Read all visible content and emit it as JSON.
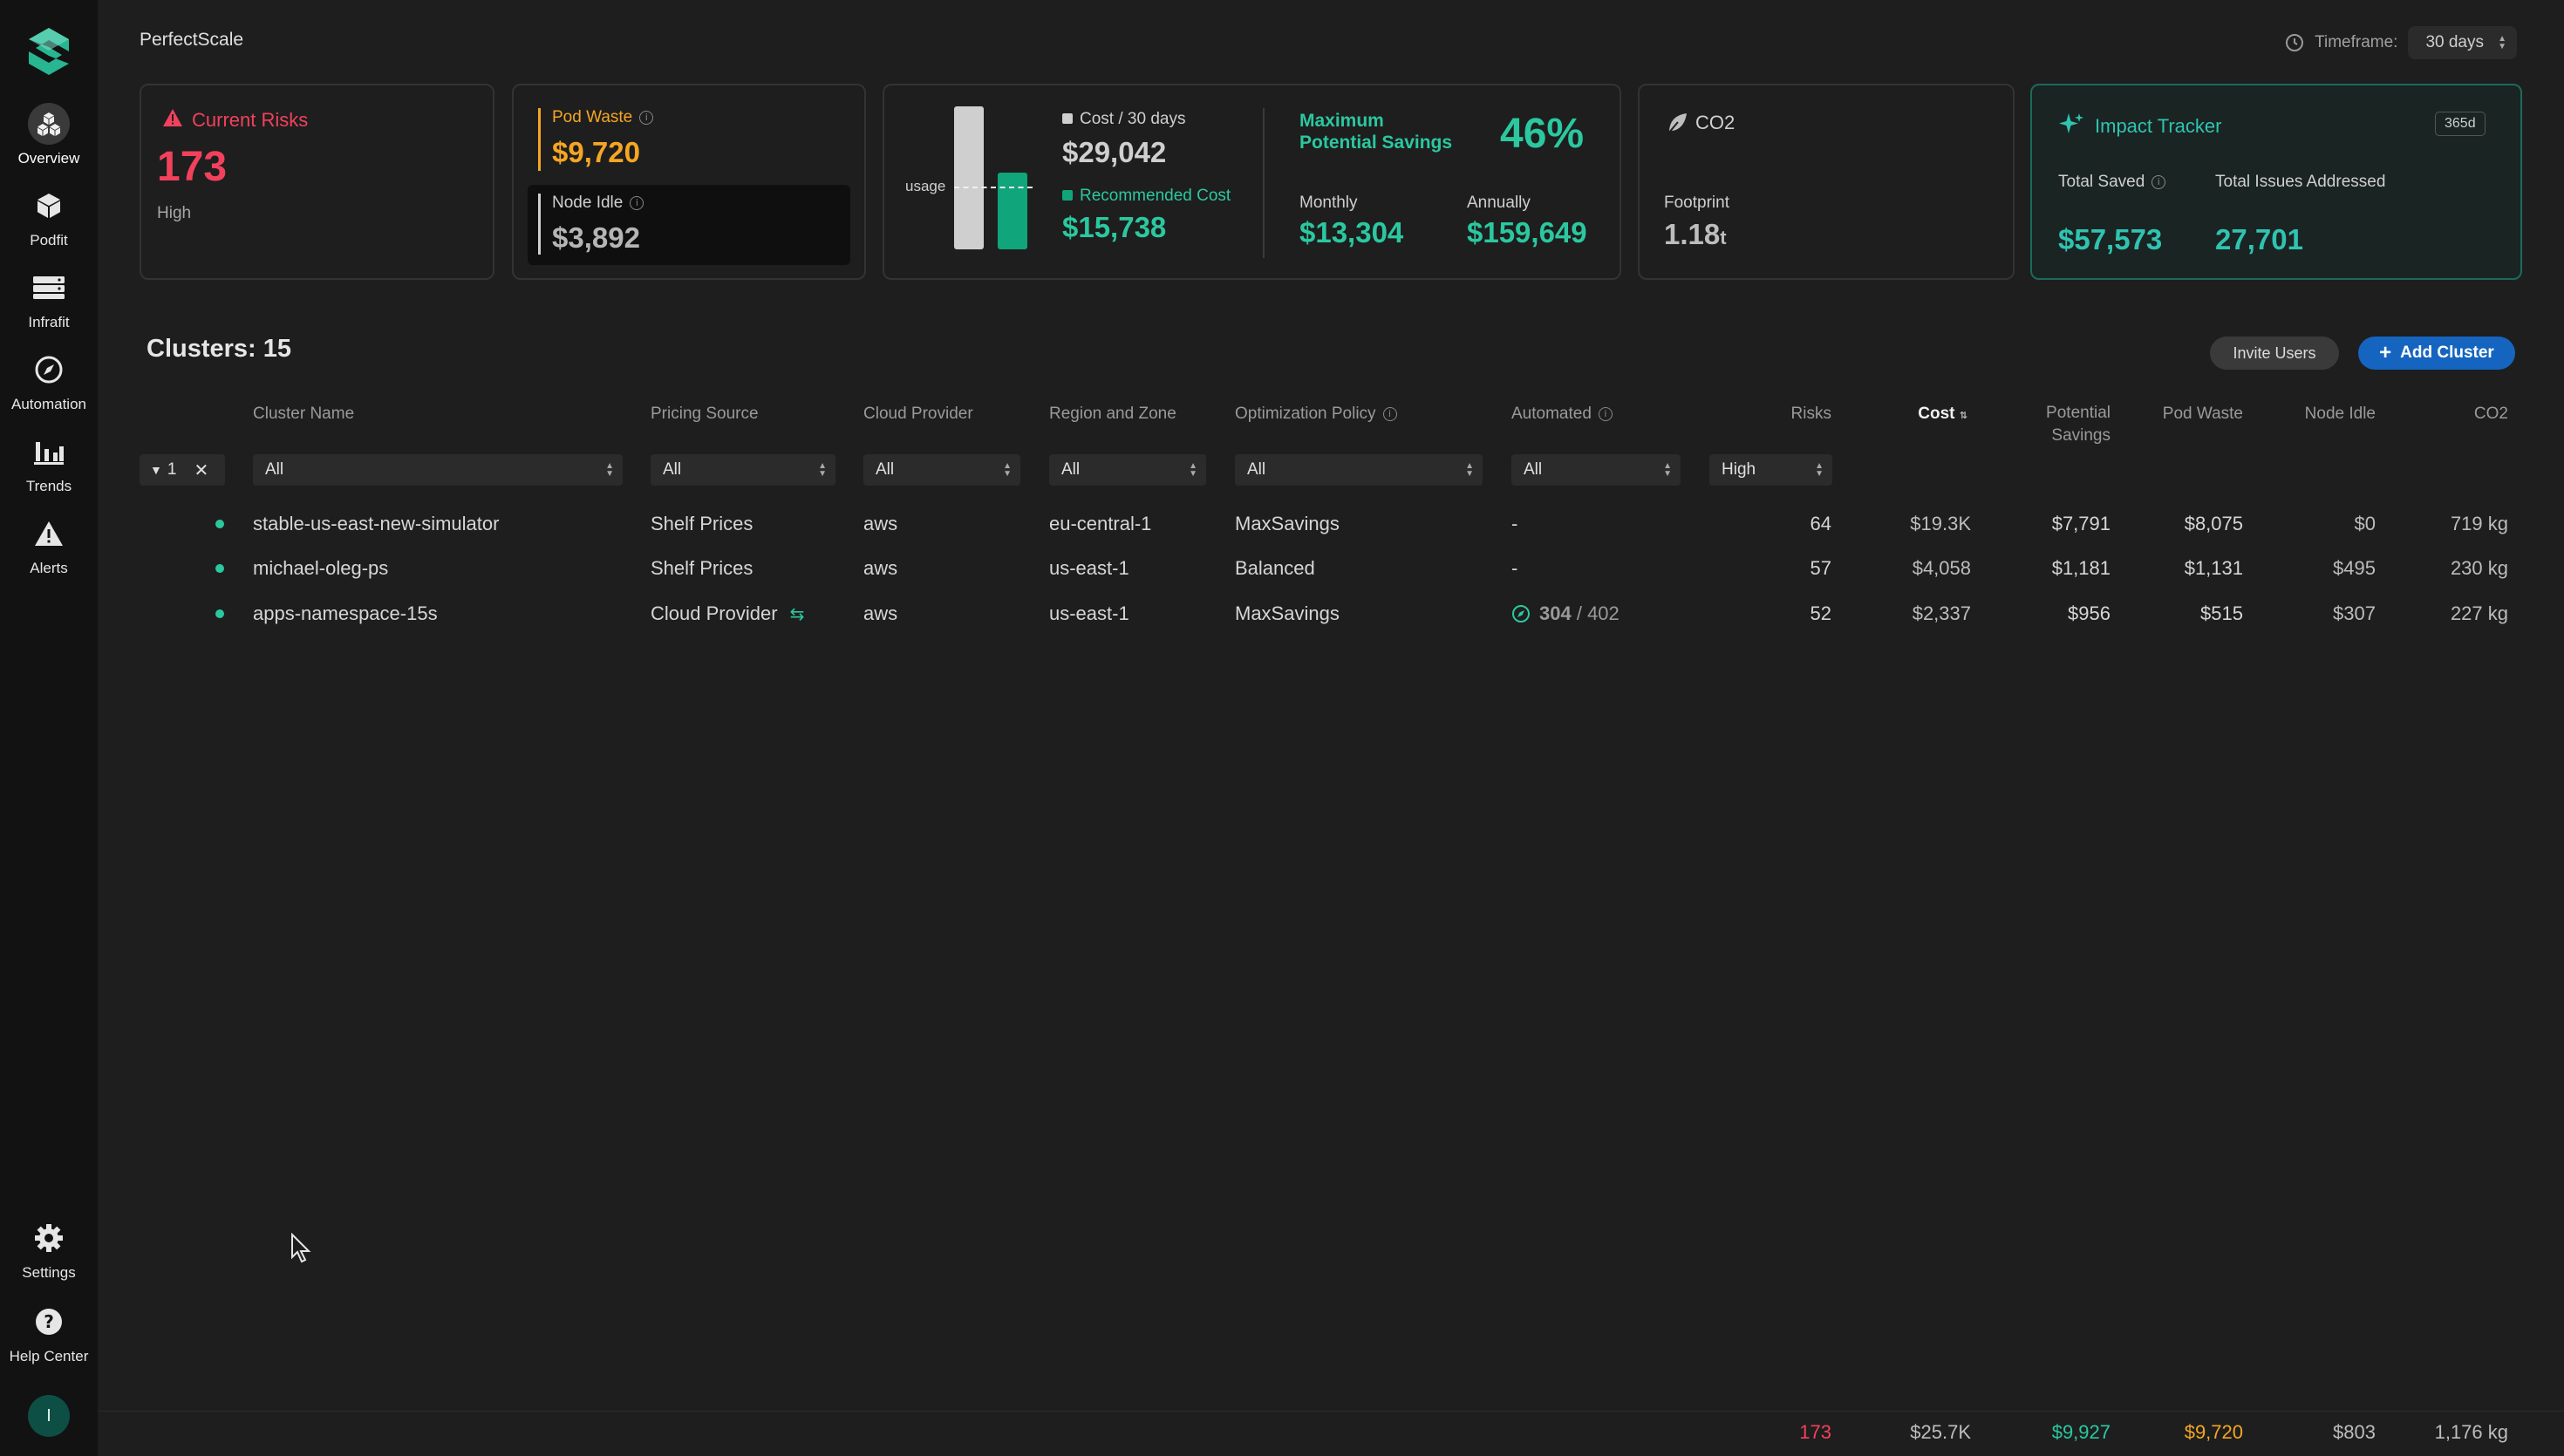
{
  "app": {
    "title": "PerfectScale"
  },
  "colors": {
    "risk": "#f2415c",
    "waste": "#f5a623",
    "savings": "#2bc8a0",
    "accent_blue": "#1565c0"
  },
  "timeframe": {
    "label": "Timeframe:",
    "value": "30 days"
  },
  "sidebar": {
    "items": [
      {
        "label": "Overview",
        "icon": "cubes-icon"
      },
      {
        "label": "Podfit",
        "icon": "cube-icon"
      },
      {
        "label": "Infrafit",
        "icon": "server-icon"
      },
      {
        "label": "Automation",
        "icon": "compass-icon"
      },
      {
        "label": "Trends",
        "icon": "bar-chart-icon"
      },
      {
        "label": "Alerts",
        "icon": "warning-icon"
      }
    ],
    "bottom": [
      {
        "label": "Settings",
        "icon": "gear-icon"
      },
      {
        "label": "Help Center",
        "icon": "help-icon"
      }
    ],
    "avatar": "I"
  },
  "cards": {
    "risks": {
      "title": "Current Risks",
      "value": "173",
      "level": "High"
    },
    "waste": {
      "pod_waste_label": "Pod Waste",
      "pod_waste": "$9,720",
      "node_idle_label": "Node Idle",
      "node_idle": "$3,892"
    },
    "cost": {
      "usage_label": "usage",
      "cost_label": "Cost / 30 days",
      "cost": "$29,042",
      "recommended_label": "Recommended Cost",
      "recommended": "$15,738",
      "max_label_1": "Maximum",
      "max_label_2": "Potential Savings",
      "max_pct": "46%",
      "monthly_label": "Monthly",
      "monthly": "$13,304",
      "annually_label": "Annually",
      "annually": "$159,649"
    },
    "co2": {
      "title": "CO2",
      "footprint_label": "Footprint",
      "value": "1.18",
      "unit": "t"
    },
    "impact": {
      "title": "Impact Tracker",
      "badge": "365d",
      "saved_label": "Total Saved",
      "saved": "$57,573",
      "issues_label": "Total Issues Addressed",
      "issues": "27,701"
    }
  },
  "clusters": {
    "title": "Clusters: 15",
    "invite_label": "Invite Users",
    "add_label": "Add Cluster",
    "headers": {
      "name": "Cluster Name",
      "pricing": "Pricing Source",
      "cloud": "Cloud Provider",
      "region": "Region and Zone",
      "policy": "Optimization Policy",
      "automated": "Automated",
      "risks": "Risks",
      "cost": "Cost",
      "savings_1": "Potential",
      "savings_2": "Savings",
      "pod_waste": "Pod Waste",
      "node_idle": "Node Idle",
      "co2": "CO2"
    },
    "filters": {
      "chip_count": "1",
      "name": "All",
      "pricing": "All",
      "cloud": "All",
      "region": "All",
      "policy": "All",
      "automated": "All",
      "risks": "High"
    },
    "rows": [
      {
        "name": "stable-us-east-new-simulator",
        "pricing": "Shelf Prices",
        "cloud": "aws",
        "region": "eu-central-1",
        "policy": "MaxSavings",
        "automated": "-",
        "risks": "64",
        "cost": "$19.3K",
        "savings": "$7,791",
        "pod_waste": "$8,075",
        "node_idle": "$0",
        "co2": "719 kg"
      },
      {
        "name": "michael-oleg-ps",
        "pricing": "Shelf Prices",
        "cloud": "aws",
        "region": "us-east-1",
        "policy": "Balanced",
        "automated": "-",
        "risks": "57",
        "cost": "$4,058",
        "savings": "$1,181",
        "pod_waste": "$1,131",
        "node_idle": "$495",
        "co2": "230 kg"
      },
      {
        "name": "apps-namespace-15s",
        "pricing": "Cloud Provider",
        "cloud": "aws",
        "region": "us-east-1",
        "policy": "MaxSavings",
        "automated_done": "304",
        "automated_total": "/ 402",
        "risks": "52",
        "cost": "$2,337",
        "savings": "$956",
        "pod_waste": "$515",
        "node_idle": "$307",
        "co2": "227 kg"
      }
    ],
    "totals": {
      "risks": "173",
      "cost": "$25.7K",
      "savings": "$9,927",
      "pod_waste": "$9,720",
      "node_idle": "$803",
      "co2": "1,176 kg"
    }
  }
}
